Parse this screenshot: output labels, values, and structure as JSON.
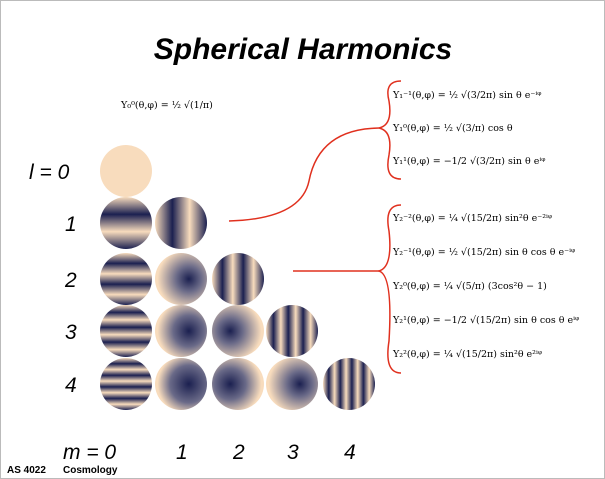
{
  "title": "Spherical Harmonics",
  "formulas": {
    "l0": [
      "Y₀⁰(θ,φ) = ½ √(1/π)"
    ],
    "l1": [
      "Y₁⁻¹(θ,φ) = ½ √(3/2π) sin θ e⁻ⁱᵠ",
      "Y₁⁰(θ,φ) = ½ √(3/π) cos θ",
      "Y₁¹(θ,φ) = −1/2 √(3/2π) sin θ eⁱᵠ"
    ],
    "l2": [
      "Y₂⁻²(θ,φ) = ¼ √(15/2π) sin²θ e⁻²ⁱᵠ",
      "Y₂⁻¹(θ,φ) = ½ √(15/2π) sin θ cos θ e⁻ⁱᵠ",
      "Y₂⁰(θ,φ) = ¼ √(5/π) (3cos²θ − 1)",
      "Y₂¹(θ,φ) = −1/2 √(15/2π) sin θ cos θ eⁱᵠ",
      "Y₂²(θ,φ) = ¼ √(15/2π) sin²θ e²ⁱᵠ"
    ]
  },
  "row_labels": [
    "l = 0",
    "1",
    "2",
    "3",
    "4"
  ],
  "column_labels": [
    "m = 0",
    "1",
    "2",
    "3",
    "4"
  ],
  "footer": {
    "course": "AS 4022",
    "subject": "Cosmology"
  }
}
